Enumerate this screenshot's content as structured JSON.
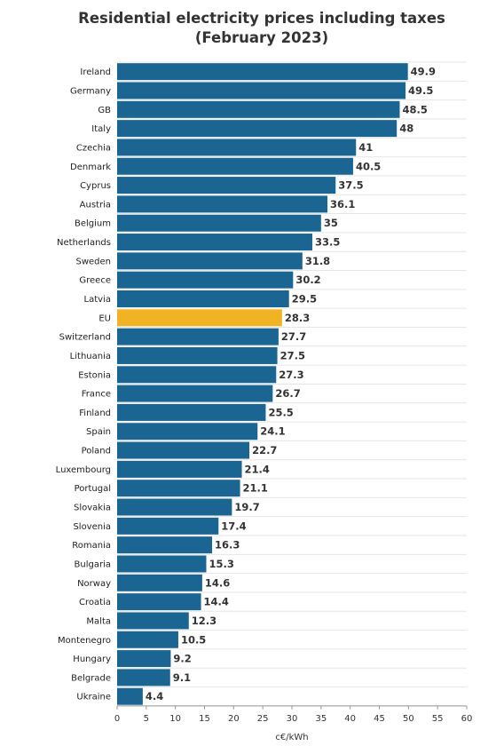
{
  "chart_data": {
    "type": "bar",
    "orientation": "horizontal",
    "title": "Residential electricity prices including taxes (February 2023)",
    "xlabel": "c€/kWh",
    "ylabel": "",
    "xlim": [
      0,
      60
    ],
    "xticks": [
      "0",
      "5",
      "10",
      "15",
      "20",
      "25",
      "30",
      "35",
      "40",
      "45",
      "50",
      "55",
      "60"
    ],
    "grid": true,
    "colors": {
      "default": "#1b6593",
      "highlight": "#f0b323"
    },
    "highlight": "EU",
    "categories": [
      "Ireland",
      "Germany",
      "GB",
      "Italy",
      "Czechia",
      "Denmark",
      "Cyprus",
      "Austria",
      "Belgium",
      "Netherlands",
      "Sweden",
      "Greece",
      "Latvia",
      "EU",
      "Switzerland",
      "Lithuania",
      "Estonia",
      "France",
      "Finland",
      "Spain",
      "Poland",
      "Luxembourg",
      "Portugal",
      "Slovakia",
      "Slovenia",
      "Romania",
      "Bulgaria",
      "Norway",
      "Croatia",
      "Malta",
      "Montenegro",
      "Hungary",
      "Belgrade",
      "Ukraine"
    ],
    "values": [
      49.9,
      49.5,
      48.5,
      48,
      41,
      40.5,
      37.5,
      36.1,
      35,
      33.5,
      31.8,
      30.2,
      29.5,
      28.3,
      27.7,
      27.5,
      27.3,
      26.7,
      25.5,
      24.1,
      22.7,
      21.4,
      21.1,
      19.7,
      17.4,
      16.3,
      15.3,
      14.6,
      14.4,
      12.3,
      10.5,
      9.2,
      9.1,
      4.4
    ],
    "value_labels": [
      "49.9",
      "49.5",
      "48.5",
      "48",
      "41",
      "40.5",
      "37.5",
      "36.1",
      "35",
      "33.5",
      "31.8",
      "30.2",
      "29.5",
      "28.3",
      "27.7",
      "27.5",
      "27.3",
      "26.7",
      "25.5",
      "24.1",
      "22.7",
      "21.4",
      "21.1",
      "19.7",
      "17.4",
      "16.3",
      "15.3",
      "14.6",
      "14.4",
      "12.3",
      "10.5",
      "9.2",
      "9.1",
      "4.4"
    ]
  }
}
